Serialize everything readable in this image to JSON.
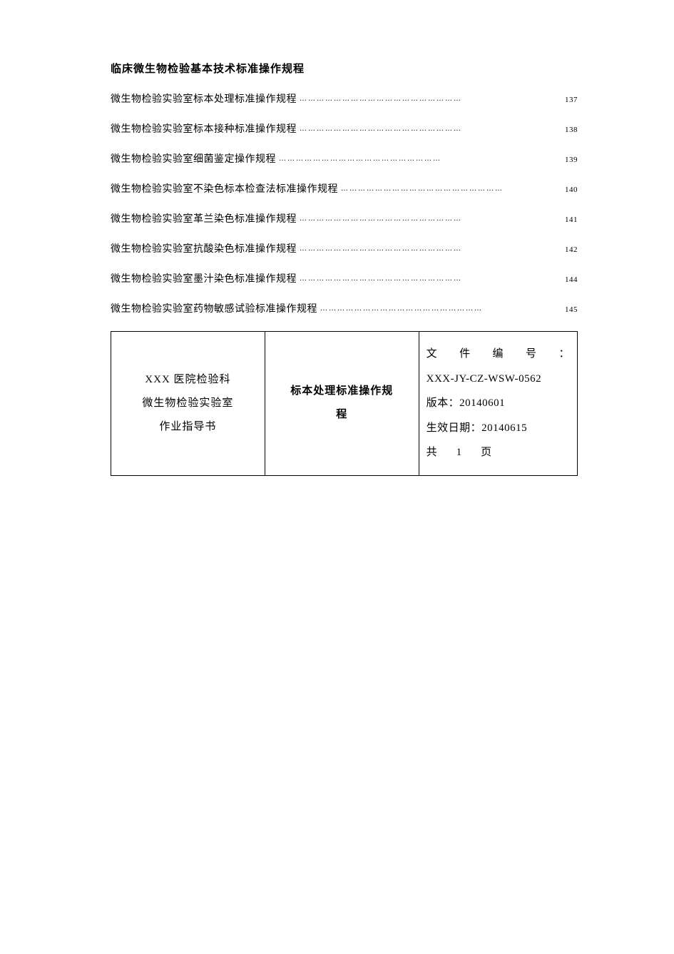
{
  "section_title": "临床微生物检验基本技术标准操作规程",
  "toc": [
    {
      "title": "微生物检验实验室标本处理标准操作规程",
      "page": "137"
    },
    {
      "title": "微生物检验实验室标本接种标准操作规程",
      "page": "138"
    },
    {
      "title": "微生物检验实验室细菌鉴定操作规程",
      "page": "139"
    },
    {
      "title": "微生物检验实验室不染色标本检查法标准操作规程",
      "page": "140"
    },
    {
      "title": "微生物检验实验室革兰染色标准操作规程",
      "page": "141"
    },
    {
      "title": "微生物检验实验室抗酸染色标准操作规程",
      "page": "142"
    },
    {
      "title": "微生物检验实验室墨汁染色标准操作规程",
      "page": "144"
    },
    {
      "title": "微生物检验实验室药物敏感试验标准操作规程",
      "page": "145"
    }
  ],
  "dots": "…………………………………………………",
  "table": {
    "left": {
      "line1": "XXX 医院检验科",
      "line2": "微生物检验实验室",
      "line3": "作业指导书"
    },
    "mid": {
      "line1": "标本处理标准操作规",
      "line2": "程"
    },
    "right": {
      "doc_num_label": "文 件 编 号 ：",
      "doc_num_value": "XXX-JY-CZ-WSW-0562",
      "version": "版本：20140601",
      "effective": "生效日期：20140615",
      "pages": "共　1　页"
    }
  }
}
